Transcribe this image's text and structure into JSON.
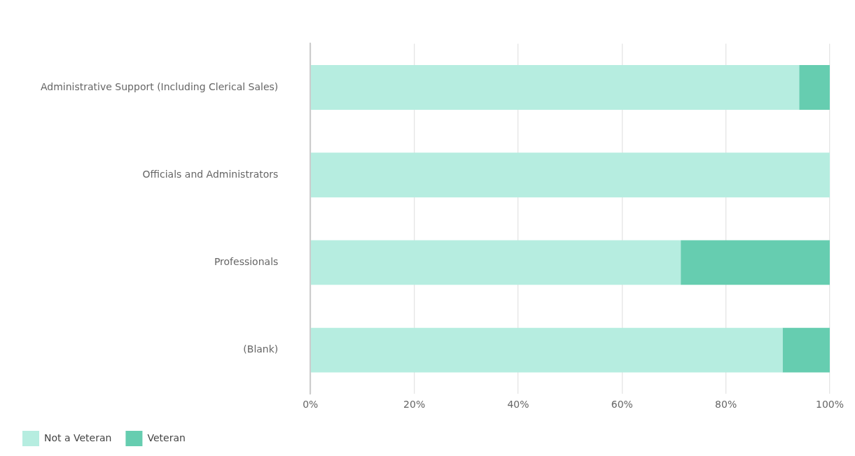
{
  "chart_data": {
    "type": "bar",
    "orientation": "horizontal",
    "stacked": true,
    "categories": [
      "Administrative Support (Including Clerical Sales)",
      "Officials and Administrators",
      "Professionals",
      "(Blank)"
    ],
    "series": [
      {
        "name": "Not a Veteran",
        "color": "#b6ede0",
        "values": [
          94.1,
          100,
          71.3,
          90.9
        ]
      },
      {
        "name": "Veteran",
        "color": "#66cdb0",
        "values": [
          5.9,
          0,
          28.7,
          9.1
        ]
      }
    ],
    "xlim": [
      0,
      100
    ],
    "xticks": [
      {
        "value": 0,
        "label": "0%"
      },
      {
        "value": 20,
        "label": "20%"
      },
      {
        "value": 40,
        "label": "40%"
      },
      {
        "value": 60,
        "label": "60%"
      },
      {
        "value": 80,
        "label": "80%"
      },
      {
        "value": 100,
        "label": "100%"
      }
    ],
    "grid": "x",
    "legend": "bottom left"
  }
}
